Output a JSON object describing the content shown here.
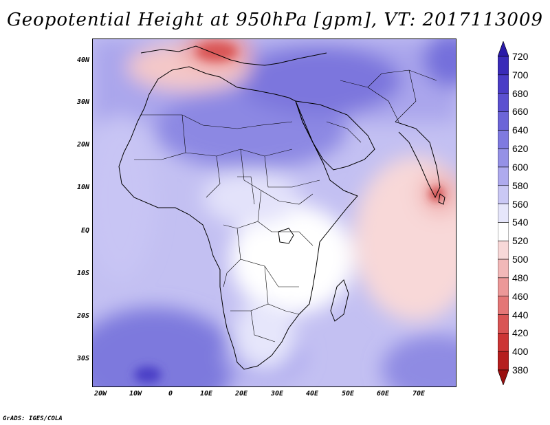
{
  "title": "Geopotential Height at 950hPa [gpm], VT: 2017113009",
  "footer": "GrADS: IGES/COLA",
  "map": {
    "lon_labels": [
      "20W",
      "10W",
      "0",
      "10E",
      "20E",
      "30E",
      "40E",
      "50E",
      "60E",
      "70E"
    ],
    "lat_labels": [
      "40N",
      "30N",
      "20N",
      "10N",
      "EQ",
      "10S",
      "20S",
      "30S"
    ]
  },
  "colorbar": {
    "levels": [
      "720",
      "700",
      "680",
      "660",
      "640",
      "620",
      "600",
      "580",
      "560",
      "540",
      "520",
      "500",
      "480",
      "460",
      "440",
      "420",
      "400",
      "380"
    ],
    "colors": [
      "#2a1aa8",
      "#3a2bb8",
      "#4a3cc6",
      "#5b50d0",
      "#6c65d8",
      "#7f7ae0",
      "#9591e6",
      "#aeaaee",
      "#cac8f5",
      "#e6e6fb",
      "#ffffff",
      "#f8d8d8",
      "#f2b8b8",
      "#ec9898",
      "#e47676",
      "#d95454",
      "#cc3535",
      "#b51e1e",
      "#9a1010"
    ]
  }
}
